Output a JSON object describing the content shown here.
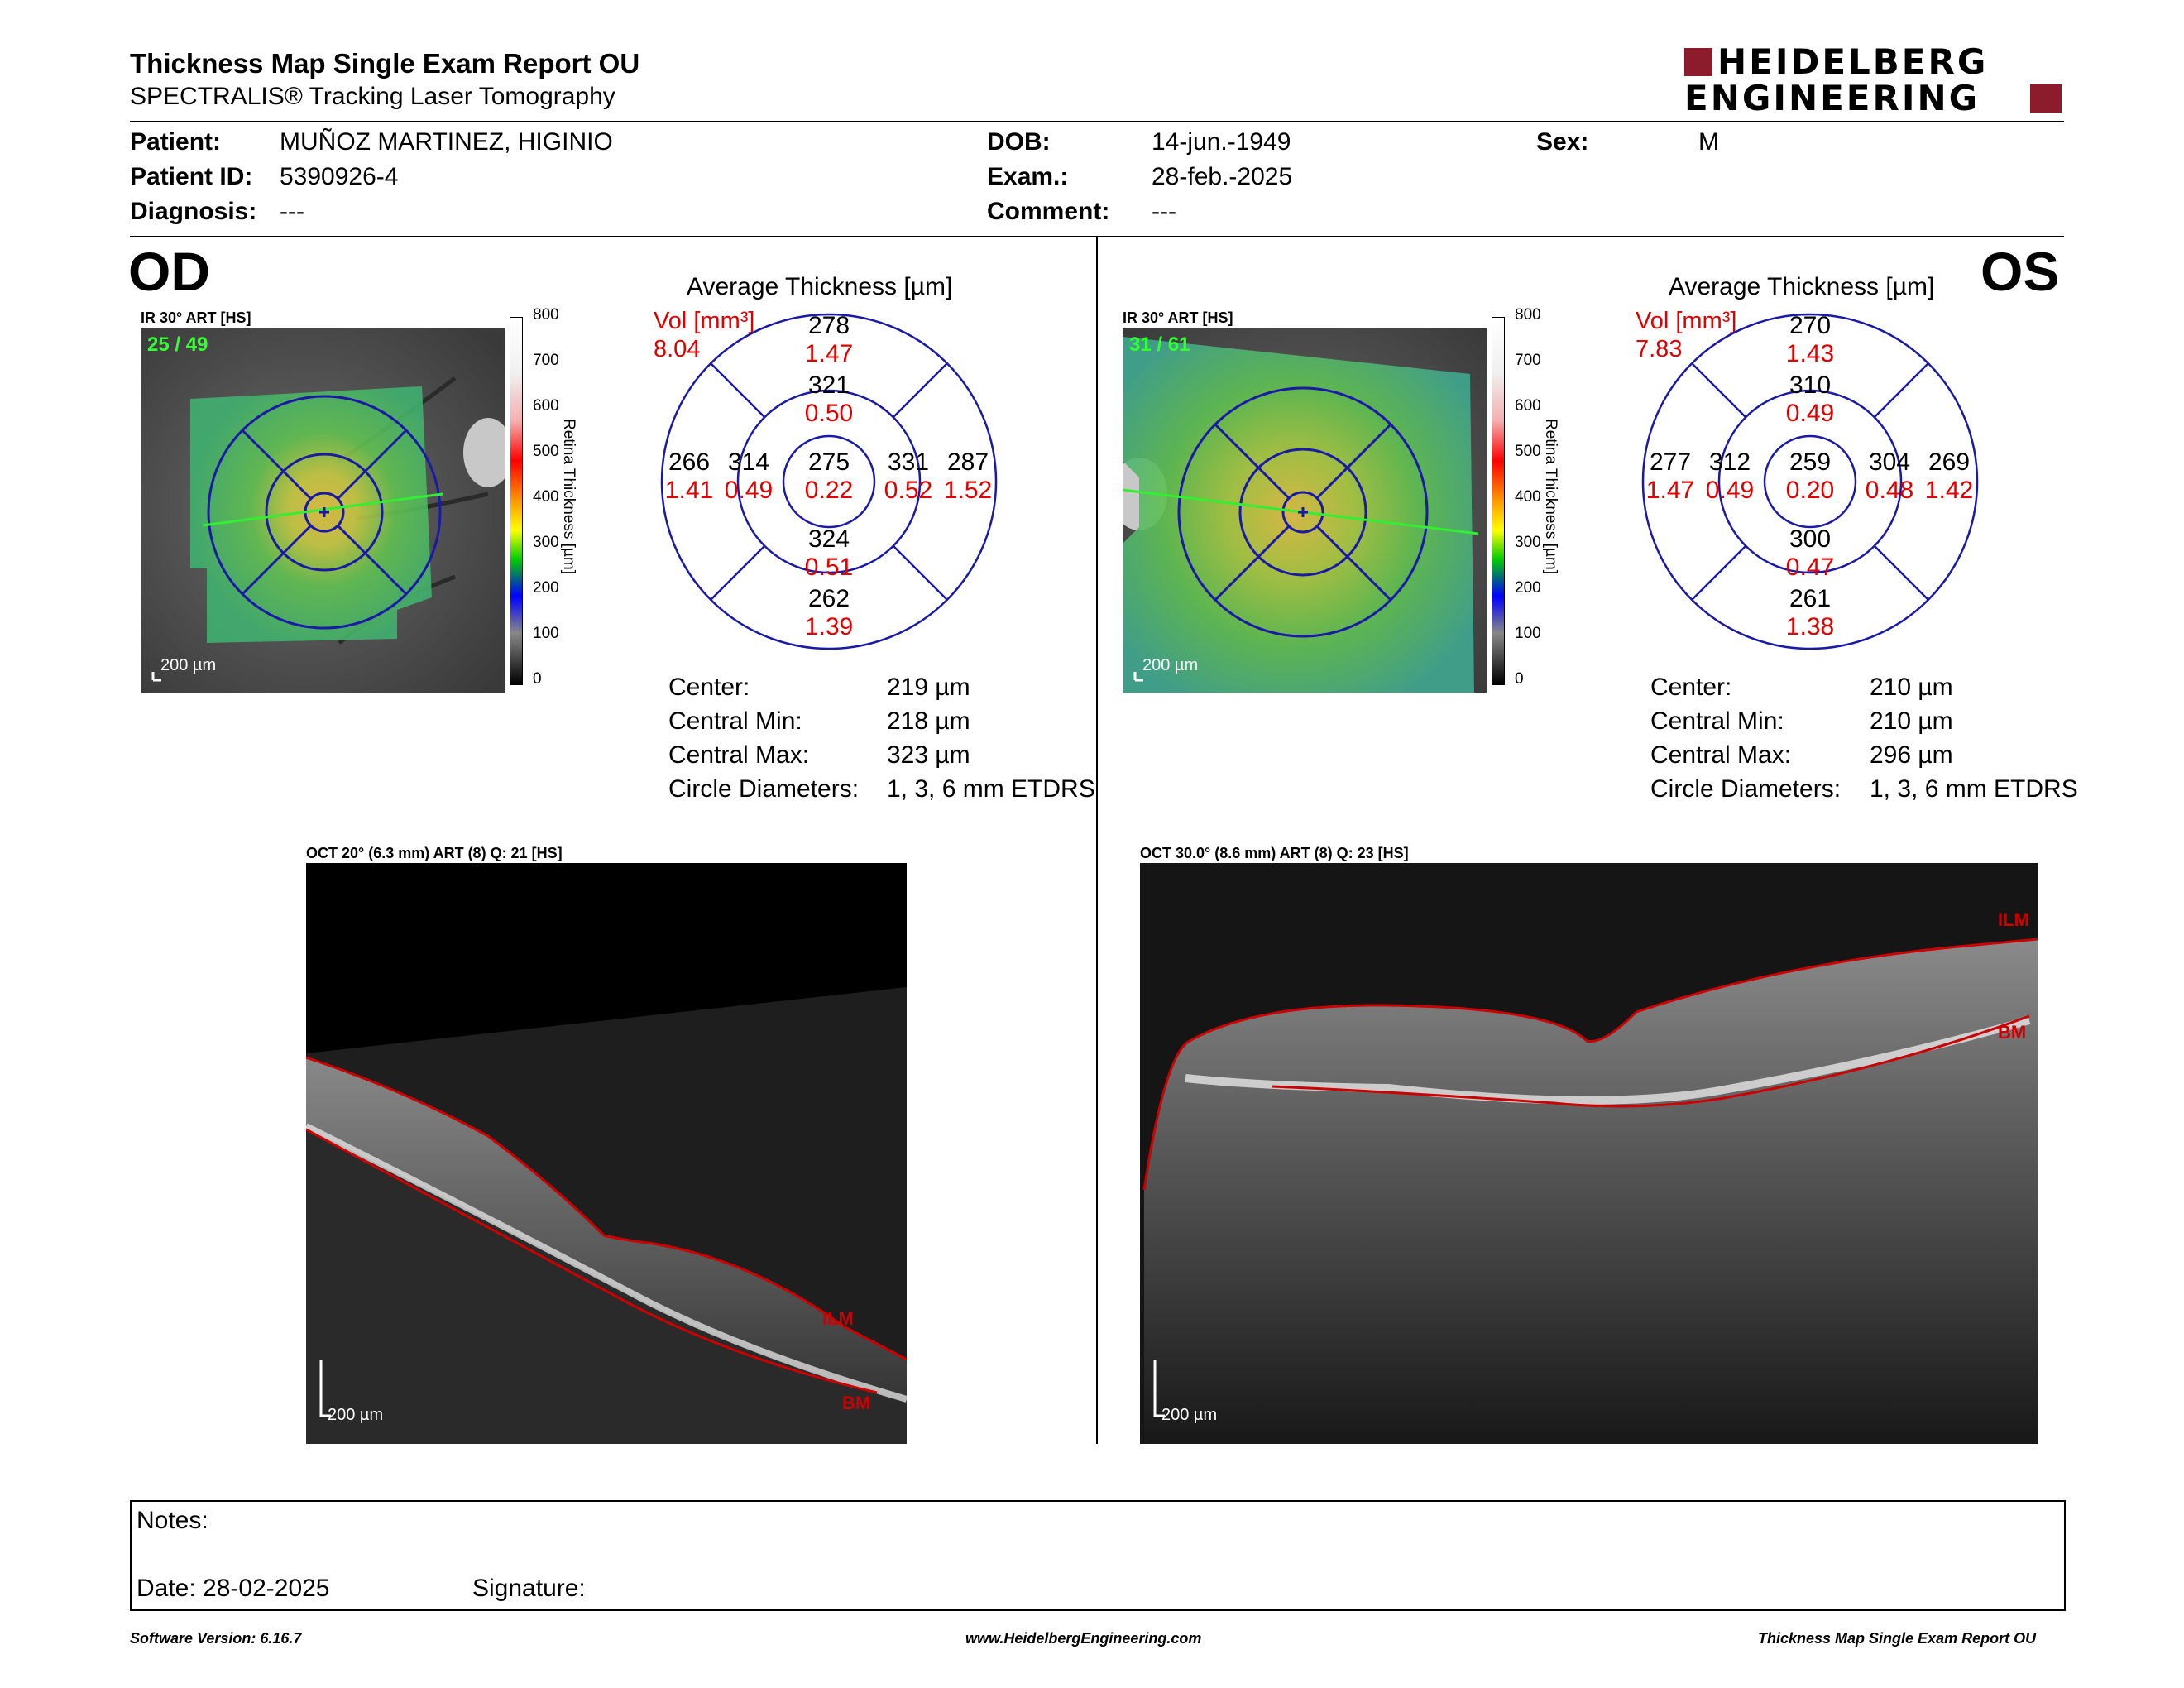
{
  "header": {
    "title": "Thickness Map Single Exam Report OU",
    "subtitle": "SPECTRALIS® Tracking Laser Tomography",
    "logo_line1": "HEIDELBERG",
    "logo_line2": "ENGINEERING"
  },
  "patient": {
    "patient_label": "Patient:",
    "patient_value": "MUÑOZ MARTINEZ, HIGINIO",
    "id_label": "Patient ID:",
    "id_value": "5390926-4",
    "diagnosis_label": "Diagnosis:",
    "diagnosis_value": "---",
    "dob_label": "DOB:",
    "dob_value": "14-jun.-1949",
    "exam_label": "Exam.:",
    "exam_value": "28-feb.-2025",
    "comment_label": "Comment:",
    "comment_value": "---",
    "sex_label": "Sex:",
    "sex_value": "M"
  },
  "colorscale": {
    "ticks": [
      "800",
      "700",
      "600",
      "500",
      "400",
      "300",
      "200",
      "100",
      "0"
    ],
    "label": "Retina Thickness [µm]"
  },
  "od": {
    "eye": "OD",
    "fundus_label": "IR 30° ART [HS]",
    "frames": "25 / 49",
    "scalebar": "200 µm",
    "avg_title": "Average Thickness [µm]",
    "vol_label": "Vol [mm³]",
    "vol_value": "8.04",
    "sectors": {
      "outer_top": {
        "t": "278",
        "v": "1.47"
      },
      "inner_top": {
        "t": "321",
        "v": "0.50"
      },
      "outer_left": {
        "t": "266",
        "v": "1.41"
      },
      "inner_left": {
        "t": "314",
        "v": "0.49"
      },
      "center": {
        "t": "275",
        "v": "0.22"
      },
      "inner_right": {
        "t": "331",
        "v": "0.52"
      },
      "outer_right": {
        "t": "287",
        "v": "1.52"
      },
      "inner_bottom": {
        "t": "324",
        "v": "0.51"
      },
      "outer_bottom": {
        "t": "262",
        "v": "1.39"
      }
    },
    "stats": [
      {
        "label": "Center:",
        "value": "219 µm"
      },
      {
        "label": "Central Min:",
        "value": "218 µm"
      },
      {
        "label": "Central Max:",
        "value": "323 µm"
      },
      {
        "label": "Circle Diameters:",
        "value": "1, 3, 6 mm ETDRS"
      }
    ],
    "oct_label": "OCT 20° (6.3 mm) ART (8) Q: 21 [HS]",
    "oct_scalebar": "200 µm",
    "ilm": "ILM",
    "bm": "BM"
  },
  "os": {
    "eye": "OS",
    "fundus_label": "IR 30° ART [HS]",
    "frames": "31 / 61",
    "scalebar": "200 µm",
    "avg_title": "Average Thickness [µm]",
    "vol_label": "Vol [mm³]",
    "vol_value": "7.83",
    "sectors": {
      "outer_top": {
        "t": "270",
        "v": "1.43"
      },
      "inner_top": {
        "t": "310",
        "v": "0.49"
      },
      "outer_left": {
        "t": "277",
        "v": "1.47"
      },
      "inner_left": {
        "t": "312",
        "v": "0.49"
      },
      "center": {
        "t": "259",
        "v": "0.20"
      },
      "inner_right": {
        "t": "304",
        "v": "0.48"
      },
      "outer_right": {
        "t": "269",
        "v": "1.42"
      },
      "inner_bottom": {
        "t": "300",
        "v": "0.47"
      },
      "outer_bottom": {
        "t": "261",
        "v": "1.38"
      }
    },
    "stats": [
      {
        "label": "Center:",
        "value": "210 µm"
      },
      {
        "label": "Central Min:",
        "value": "210 µm"
      },
      {
        "label": "Central Max:",
        "value": "296 µm"
      },
      {
        "label": "Circle Diameters:",
        "value": "1, 3, 6 mm ETDRS"
      }
    ],
    "oct_label": "OCT 30.0° (8.6 mm) ART (8) Q: 23 [HS]",
    "oct_scalebar": "200 µm",
    "ilm": "ILM",
    "bm": "BM"
  },
  "notes": {
    "notes_label": "Notes:",
    "date_label": "Date: 28-02-2025",
    "signature_label": "Signature:"
  },
  "footer": {
    "left": "Software Version: 6.16.7",
    "center": "www.HeidelbergEngineering.com",
    "right": "Thickness Map Single Exam Report OU"
  },
  "colors": {
    "accent": "#8c1c2b",
    "etdrs": "#1a1aa6",
    "volume": "#e00000",
    "segmentation": "#cc0000"
  }
}
